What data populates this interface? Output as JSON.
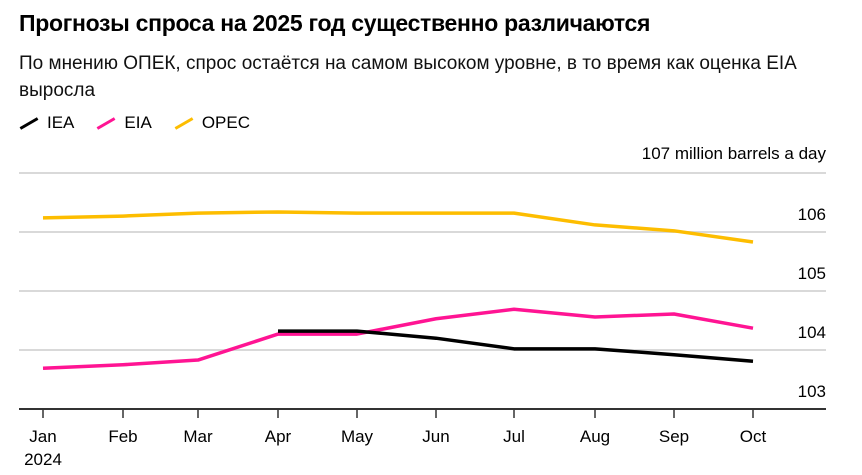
{
  "title": "Прогнозы спроса на 2025 год существенно различаются",
  "subtitle": "По мнению ОПЕК, спрос остаётся на самом высоком уровне, в то время как оценка EIA выросла",
  "chart_data": {
    "type": "line",
    "categories": [
      "Jan",
      "Feb",
      "Mar",
      "Apr",
      "May",
      "Jun",
      "Jul",
      "Aug",
      "Sep",
      "Oct"
    ],
    "x_year_label": "2024",
    "y_unit_label": "million barrels a day",
    "ylim": [
      103,
      107
    ],
    "yticks": [
      103,
      104,
      105,
      106,
      107
    ],
    "grid": true,
    "legend_position": "top-left",
    "series": [
      {
        "name": "IEA",
        "color": "#000000",
        "values": [
          null,
          null,
          null,
          104.32,
          104.32,
          104.2,
          104.02,
          104.02,
          103.92,
          103.81
        ]
      },
      {
        "name": "EIA",
        "color": "#ff1493",
        "values": [
          103.69,
          103.75,
          103.83,
          104.27,
          104.27,
          104.53,
          104.69,
          104.56,
          104.61,
          104.37
        ]
      },
      {
        "name": "OPEC",
        "color": "#fdbd00",
        "values": [
          106.24,
          106.27,
          106.32,
          106.34,
          106.32,
          106.32,
          106.32,
          106.12,
          106.02,
          105.83
        ]
      }
    ]
  }
}
